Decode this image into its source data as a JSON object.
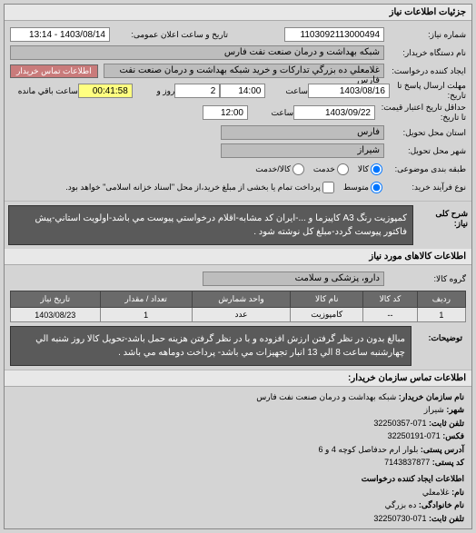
{
  "page_title": "جزئیات اطلاعات نیاز",
  "top": {
    "need_number_label": "شماره نیاز:",
    "need_number": "1103092113000494",
    "announce_label": "تاریخ و ساعت اعلان عمومی:",
    "announce_value": "1403/08/14 - 13:14",
    "device_name_label": "نام دستگاه خریدار:",
    "device_name": "شبکه بهداشت و درمان صنعت نفت فارس",
    "create_request_label": "ایجاد کننده درخواست:",
    "contact_buyer_btn": "اطلاعات تماس خریدار",
    "contact_field": "غلامعلي ده بزرگي تدارکات و خريد شبكه بهداشت و درمان صنعت نفت فارس",
    "submit_deadline_label": "مهلت ارسال پاسخ تا تاریخ:",
    "submit_deadline_date": "1403/08/16",
    "time_label": "ساعت",
    "submit_deadline_time": "14:00",
    "countdown_days": "2",
    "days_label": "روز و",
    "countdown_time": "00:41:58",
    "remaining_label": "ساعت باقي مانده",
    "price_validity_label": "حداقل تاریخ اعتبار قیمت: تا تاریخ:",
    "price_validity_date": "1403/09/22",
    "price_validity_time": "12:00",
    "delivery_province_label": "استان محل تحویل:",
    "delivery_province": "فارس",
    "delivery_city_label": "شهر محل تحویل:",
    "delivery_city": "شیراز",
    "packaging_label": "طبقه بندی موضوعی:",
    "radio_kala": "کالا",
    "radio_khedmat": "خدمت",
    "radio_both": "کالا/خدمت",
    "payment_type_label": "نوع فرآیند خرید: ",
    "radio_full": "متوسط",
    "radio_partial": "پرداخت تمام يا بخشی از مبلغ خريد،از محل \"اسناد خزانه اسلامی\" خواهد بود."
  },
  "desc": {
    "label": "شرح کلی نیاز:",
    "text": "كمپوزيت رنگ A3 کاپیزما و ...-ايران كد مشابه-اقلام درخواستي پيوست مي باشد-اولويت استاني-پيش فاكتور پيوست گردد-مبلغ كل نوشته شود ."
  },
  "goods": {
    "header": "اطلاعات کالاهای مورد نیاز",
    "group_label": "گروه کالا:",
    "group_value": "دارو، پزشکی و سلامت",
    "table": {
      "headers": [
        "ردیف",
        "کد کالا",
        "نام کالا",
        "واحد شمارش",
        "تعداد / مقدار",
        "تاریخ نیاز"
      ],
      "rows": [
        [
          "1",
          "--",
          "کامپوزیت",
          "عدد",
          "1",
          "1403/08/23"
        ]
      ]
    },
    "notes_label": "توضیحات:",
    "notes_text": "مبالغ بدون در نظر گرفتن ارزش افزوده و با در نظر گرفتن هزينه حمل باشد-تحويل كالا روز شنبه الي چهارشنبه ساعت 8 الي 13 انبار تجهيزات مي باشد- پرداخت دوماهه مي باشد ."
  },
  "contact": {
    "header": "اطلاعات تماس سازمان خریدار:",
    "org_label": "نام سازمان خریدار:",
    "org_value": "شبکه بهداشت و درمان صنعت نفت فارس",
    "city_label": "شهر:",
    "city_value": "شیراز",
    "phone_label": "تلفن ثابت:",
    "phone_value": "071-32250357",
    "fax_label": "فکس:",
    "fax_value": "071-32250191",
    "postal_label": "آدرس پستی:",
    "postal_value": "بلوار ارم حدفاصل كوچه 4 و 6",
    "postcode_label": "کد پستی:",
    "postcode_value": "7143837877",
    "creator_header": "اطلاعات ایجاد کننده درخواست",
    "name_label": "نام:",
    "name_value": "غلامعلي",
    "family_label": "نام خانوادگی:",
    "family_value": "ده بزرگي",
    "creator_phone_label": "تلفن ثابت:",
    "creator_phone_value": "071-32250730"
  }
}
